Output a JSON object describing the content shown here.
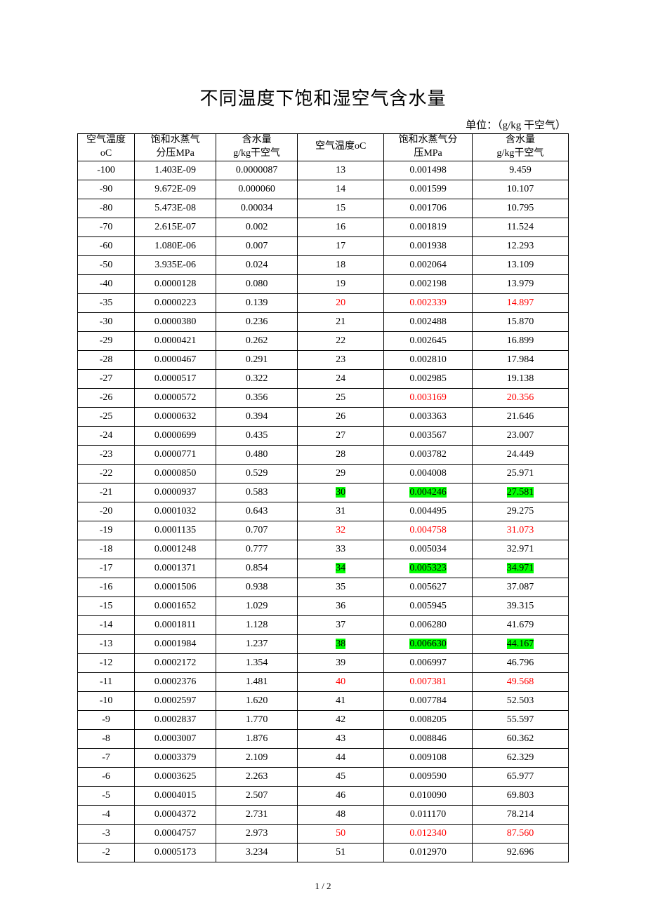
{
  "title": "不同温度下饱和湿空气含水量",
  "unit_label": "单位：（g/kg 干空气）",
  "footer": "1 / 2",
  "headers": {
    "temp1_line1": "空气温度",
    "temp1_line2": "oC",
    "press1_line1": "饱和水蒸气",
    "press1_line2": "分压MPa",
    "water1_line1": "含水量",
    "water1_line2": "g/kg干空气",
    "temp2": "空气温度oC",
    "press2_line1": "饱和水蒸气分",
    "press2_line2": "压MPa",
    "water2_line1": "含水量",
    "water2_line2": "g/kg干空气"
  },
  "rows": [
    {
      "t1": "-100",
      "p1": "1.403E-09",
      "w1": "0.0000087",
      "t2": "13",
      "p2": "0.001498",
      "w2": "9.459"
    },
    {
      "t1": "-90",
      "p1": "9.672E-09",
      "w1": "0.000060",
      "t2": "14",
      "p2": "0.001599",
      "w2": "10.107"
    },
    {
      "t1": "-80",
      "p1": "5.473E-08",
      "w1": "0.00034",
      "t2": "15",
      "p2": "0.001706",
      "w2": "10.795"
    },
    {
      "t1": "-70",
      "p1": "2.615E-07",
      "w1": "0.002",
      "t2": "16",
      "p2": "0.001819",
      "w2": "11.524"
    },
    {
      "t1": "-60",
      "p1": "1.080E-06",
      "w1": "0.007",
      "t2": "17",
      "p2": "0.001938",
      "w2": "12.293"
    },
    {
      "t1": "-50",
      "p1": "3.935E-06",
      "w1": "0.024",
      "t2": "18",
      "p2": "0.002064",
      "w2": "13.109"
    },
    {
      "t1": "-40",
      "p1": "0.0000128",
      "w1": "0.080",
      "t2": "19",
      "p2": "0.002198",
      "w2": "13.979"
    },
    {
      "t1": "-35",
      "p1": "0.0000223",
      "w1": "0.139",
      "t2": "20",
      "p2": "0.002339",
      "w2": "14.897",
      "t2_red": true,
      "p2_red": true,
      "w2_red": true
    },
    {
      "t1": "-30",
      "p1": "0.0000380",
      "w1": "0.236",
      "t2": "21",
      "p2": "0.002488",
      "w2": "15.870"
    },
    {
      "t1": "-29",
      "p1": "0.0000421",
      "w1": "0.262",
      "t2": "22",
      "p2": "0.002645",
      "w2": "16.899"
    },
    {
      "t1": "-28",
      "p1": "0.0000467",
      "w1": "0.291",
      "t2": "23",
      "p2": "0.002810",
      "w2": "17.984"
    },
    {
      "t1": "-27",
      "p1": "0.0000517",
      "w1": "0.322",
      "t2": "24",
      "p2": "0.002985",
      "w2": "19.138"
    },
    {
      "t1": "-26",
      "p1": "0.0000572",
      "w1": "0.356",
      "t2": "25",
      "p2": "0.003169",
      "w2": "20.356",
      "p2_red": true,
      "w2_red": true
    },
    {
      "t1": "-25",
      "p1": "0.0000632",
      "w1": "0.394",
      "t2": "26",
      "p2": "0.003363",
      "w2": "21.646"
    },
    {
      "t1": "-24",
      "p1": "0.0000699",
      "w1": "0.435",
      "t2": "27",
      "p2": "0.003567",
      "w2": "23.007"
    },
    {
      "t1": "-23",
      "p1": "0.0000771",
      "w1": "0.480",
      "t2": "28",
      "p2": "0.003782",
      "w2": "24.449"
    },
    {
      "t1": "-22",
      "p1": "0.0000850",
      "w1": "0.529",
      "t2": "29",
      "p2": "0.004008",
      "w2": "25.971"
    },
    {
      "t1": "-21",
      "p1": "0.0000937",
      "w1": "0.583",
      "t2": "30",
      "p2": "0.004246",
      "w2": "27.581",
      "t2_green": true,
      "p2_green": true,
      "w2_green": true
    },
    {
      "t1": "-20",
      "p1": "0.0001032",
      "w1": "0.643",
      "t2": "31",
      "p2": "0.004495",
      "w2": "29.275"
    },
    {
      "t1": "-19",
      "p1": "0.0001135",
      "w1": "0.707",
      "t2": "32",
      "p2": "0.004758",
      "w2": "31.073",
      "t2_red": true,
      "p2_red": true,
      "w2_red": true
    },
    {
      "t1": "-18",
      "p1": "0.0001248",
      "w1": "0.777",
      "t2": "33",
      "p2": "0.005034",
      "w2": "32.971"
    },
    {
      "t1": "-17",
      "p1": "0.0001371",
      "w1": "0.854",
      "t2": "34",
      "p2": "0.005323",
      "w2": "34.971",
      "t2_green": true,
      "p2_green": true,
      "w2_green": true
    },
    {
      "t1": "-16",
      "p1": "0.0001506",
      "w1": "0.938",
      "t2": "35",
      "p2": "0.005627",
      "w2": "37.087"
    },
    {
      "t1": "-15",
      "p1": "0.0001652",
      "w1": "1.029",
      "t2": "36",
      "p2": "0.005945",
      "w2": "39.315"
    },
    {
      "t1": "-14",
      "p1": "0.0001811",
      "w1": "1.128",
      "t2": "37",
      "p2": "0.006280",
      "w2": "41.679"
    },
    {
      "t1": "-13",
      "p1": "0.0001984",
      "w1": "1.237",
      "t2": "38",
      "p2": "0.006630",
      "w2": "44.167",
      "t2_green": true,
      "p2_green": true,
      "w2_green": true
    },
    {
      "t1": "-12",
      "p1": "0.0002172",
      "w1": "1.354",
      "t2": "39",
      "p2": "0.006997",
      "w2": "46.796"
    },
    {
      "t1": "-11",
      "p1": "0.0002376",
      "w1": "1.481",
      "t2": "40",
      "p2": "0.007381",
      "w2": "49.568",
      "t2_red": true,
      "p2_red": true,
      "w2_red": true
    },
    {
      "t1": "-10",
      "p1": "0.0002597",
      "w1": "1.620",
      "t2": "41",
      "p2": "0.007784",
      "w2": "52.503"
    },
    {
      "t1": "-9",
      "p1": "0.0002837",
      "w1": "1.770",
      "t2": "42",
      "p2": "0.008205",
      "w2": "55.597"
    },
    {
      "t1": "-8",
      "p1": "0.0003007",
      "w1": "1.876",
      "t2": "43",
      "p2": "0.008846",
      "w2": "60.362"
    },
    {
      "t1": "-7",
      "p1": "0.0003379",
      "w1": "2.109",
      "t2": "44",
      "p2": "0.009108",
      "w2": "62.329"
    },
    {
      "t1": "-6",
      "p1": "0.0003625",
      "w1": "2.263",
      "t2": "45",
      "p2": "0.009590",
      "w2": "65.977"
    },
    {
      "t1": "-5",
      "p1": "0.0004015",
      "w1": "2.507",
      "t2": "46",
      "p2": "0.010090",
      "w2": "69.803"
    },
    {
      "t1": "-4",
      "p1": "0.0004372",
      "w1": "2.731",
      "t2": "48",
      "p2": "0.011170",
      "w2": "78.214"
    },
    {
      "t1": "-3",
      "p1": "0.0004757",
      "w1": "2.973",
      "t2": "50",
      "p2": "0.012340",
      "w2": "87.560",
      "t2_red": true,
      "p2_red": true,
      "w2_red": true
    },
    {
      "t1": "-2",
      "p1": "0.0005173",
      "w1": "3.234",
      "t2": "51",
      "p2": "0.012970",
      "w2": "92.696"
    }
  ]
}
